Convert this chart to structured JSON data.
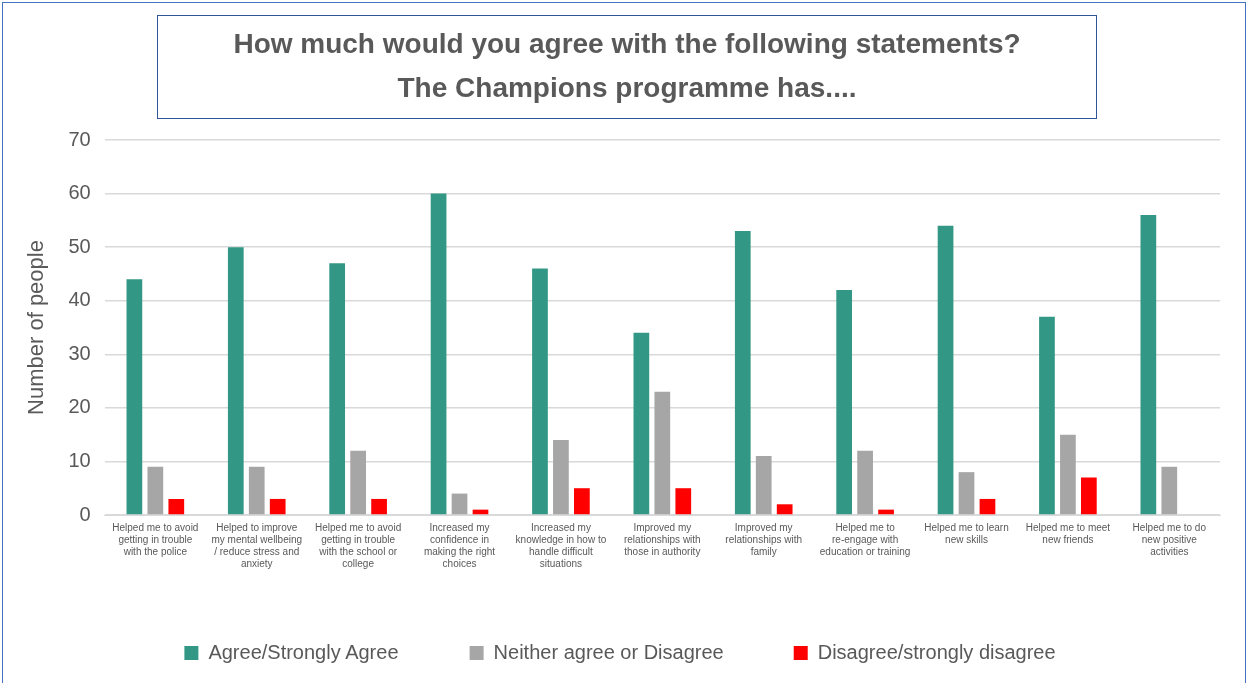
{
  "chart_data": {
    "type": "bar",
    "title": "How much would you agree with the following statements?\nThe Champions programme has....",
    "ylabel": "Number of people",
    "categories": [
      "Helped me to avoid getting in trouble with the police",
      "Helped to improve my mental wellbeing / reduce stress and anxiety",
      "Helped me to avoid getting in trouble with the school or college",
      "Increased my confidence in making the right choices",
      "Increased my knowledge in how to handle difficult situations",
      "Improved my relationships with those in authority",
      "Improved my relationships with family",
      "Helped me to re-engage with education or training",
      "Helped me to learn new skills",
      "Helped me to meet new friends",
      "Helped me to do new positive activities"
    ],
    "series": [
      {
        "name": "Agree/Strongly Agree",
        "color": "#329784",
        "values": [
          44,
          50,
          47,
          60,
          46,
          34,
          53,
          42,
          54,
          37,
          56
        ]
      },
      {
        "name": "Neither agree or Disagree",
        "color": "#a6a6a6",
        "values": [
          9,
          9,
          12,
          4,
          14,
          23,
          11,
          12,
          8,
          15,
          9
        ]
      },
      {
        "name": "Disagree/strongly disagree",
        "color": "#ff0000",
        "values": [
          3,
          3,
          3,
          1,
          5,
          5,
          2,
          1,
          3,
          7,
          0
        ]
      }
    ],
    "ylim": [
      0,
      70
    ],
    "yticks": [
      0,
      10,
      20,
      30,
      40,
      50,
      60,
      70
    ],
    "grid": "y",
    "legend": "bottom"
  }
}
